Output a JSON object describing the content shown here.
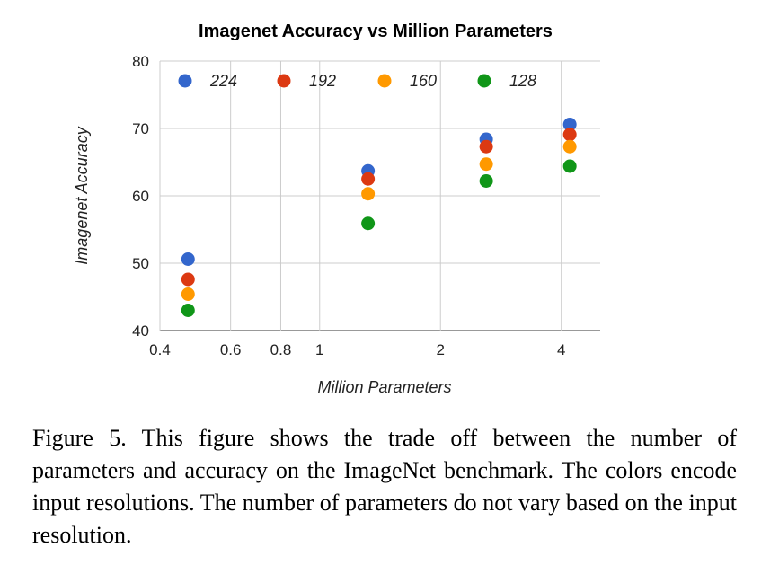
{
  "chart_data": {
    "type": "scatter",
    "title": "Imagenet Accuracy vs Million Parameters",
    "xlabel": "Million Parameters",
    "ylabel": "Imagenet Accuracy",
    "xscale": "log",
    "xlim": [
      0.4,
      5
    ],
    "ylim": [
      40,
      80
    ],
    "xticks": [
      0.4,
      0.6,
      0.8,
      1,
      2,
      4
    ],
    "xtick_labels": [
      "0.4",
      "0.6",
      "0.8",
      "1",
      "2",
      "4"
    ],
    "yticks": [
      40,
      50,
      60,
      70,
      80
    ],
    "ytick_labels": [
      "40",
      "50",
      "60",
      "70",
      "80"
    ],
    "grid": true,
    "legend_position": "top, inside plot",
    "series": [
      {
        "name": "224",
        "color": "#3366cc",
        "x": [
          0.47,
          1.32,
          2.6,
          4.2
        ],
        "y": [
          50.6,
          63.7,
          68.4,
          70.6
        ]
      },
      {
        "name": "192",
        "color": "#dc3912",
        "x": [
          0.47,
          1.32,
          2.6,
          4.2
        ],
        "y": [
          47.6,
          62.5,
          67.3,
          69.1
        ]
      },
      {
        "name": "160",
        "color": "#ff9900",
        "x": [
          0.47,
          1.32,
          2.6,
          4.2
        ],
        "y": [
          45.4,
          60.3,
          64.7,
          67.3
        ]
      },
      {
        "name": "128",
        "color": "#109618",
        "x": [
          0.47,
          1.32,
          2.6,
          4.2
        ],
        "y": [
          43.0,
          55.9,
          62.2,
          64.4
        ]
      }
    ]
  },
  "caption": "Figure 5. This figure shows the trade off between the number of parameters and accuracy on the ImageNet benchmark. The colors encode input resolutions. The number of parameters do not vary based on the input resolution."
}
